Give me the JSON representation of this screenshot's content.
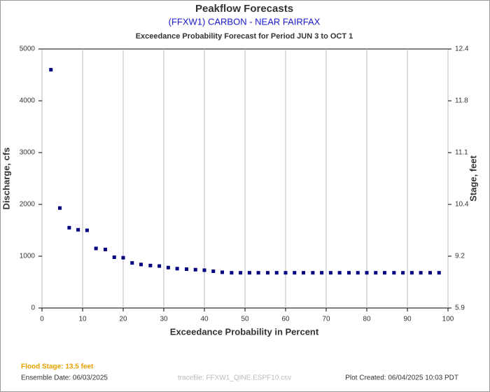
{
  "chart_data": {
    "type": "scatter",
    "title": "Peakflow Forecasts",
    "subtitle": "(FFXW1) CARBON - NEAR FAIRFAX",
    "description": "Exceedance Probability Forecast for Period JUN 3 to OCT 1",
    "x_label": "Exceedance Probability in Percent",
    "y_label": "Discharge, cfs",
    "y2_label": "Stage, feet",
    "color": "#000080",
    "grid": true,
    "xlim": [
      0,
      100
    ],
    "xticks": [
      0,
      10,
      20,
      30,
      40,
      50,
      60,
      70,
      80,
      90,
      100
    ],
    "ylim": [
      0,
      5000
    ],
    "yticks": [
      0,
      1000,
      2000,
      3000,
      4000,
      5000
    ],
    "y2ticks": [
      5.9,
      9.2,
      10.4,
      11.1,
      11.8,
      12.4
    ],
    "x": [
      2.2,
      4.4,
      6.7,
      8.9,
      11.1,
      13.3,
      15.6,
      17.8,
      20.0,
      22.2,
      24.4,
      26.7,
      28.9,
      31.1,
      33.3,
      35.6,
      37.8,
      40.0,
      42.2,
      44.4,
      46.7,
      48.9,
      51.1,
      53.3,
      55.6,
      57.8,
      60.0,
      62.2,
      64.4,
      66.7,
      68.9,
      71.1,
      73.3,
      75.6,
      77.8,
      80.0,
      82.2,
      84.4,
      86.7,
      88.9,
      91.1,
      93.3,
      95.6,
      97.8
    ],
    "values": [
      4600,
      1930,
      1550,
      1510,
      1500,
      1150,
      1130,
      980,
      970,
      870,
      840,
      820,
      810,
      780,
      760,
      750,
      740,
      730,
      710,
      690,
      680,
      680,
      680,
      680,
      680,
      680,
      680,
      680,
      680,
      680,
      680,
      680,
      680,
      680,
      680,
      680,
      680,
      680,
      680,
      680,
      680,
      680,
      680,
      680
    ],
    "flood_stage": "Flood Stage: 13.5 feet",
    "ensemble_date": "Ensemble Date: 06/03/2025",
    "tracefile": "tracefile: FFXW1_QINE.ESPF10.csv",
    "plot_created": "Plot Created: 06/04/2025 10:03 PDT"
  }
}
